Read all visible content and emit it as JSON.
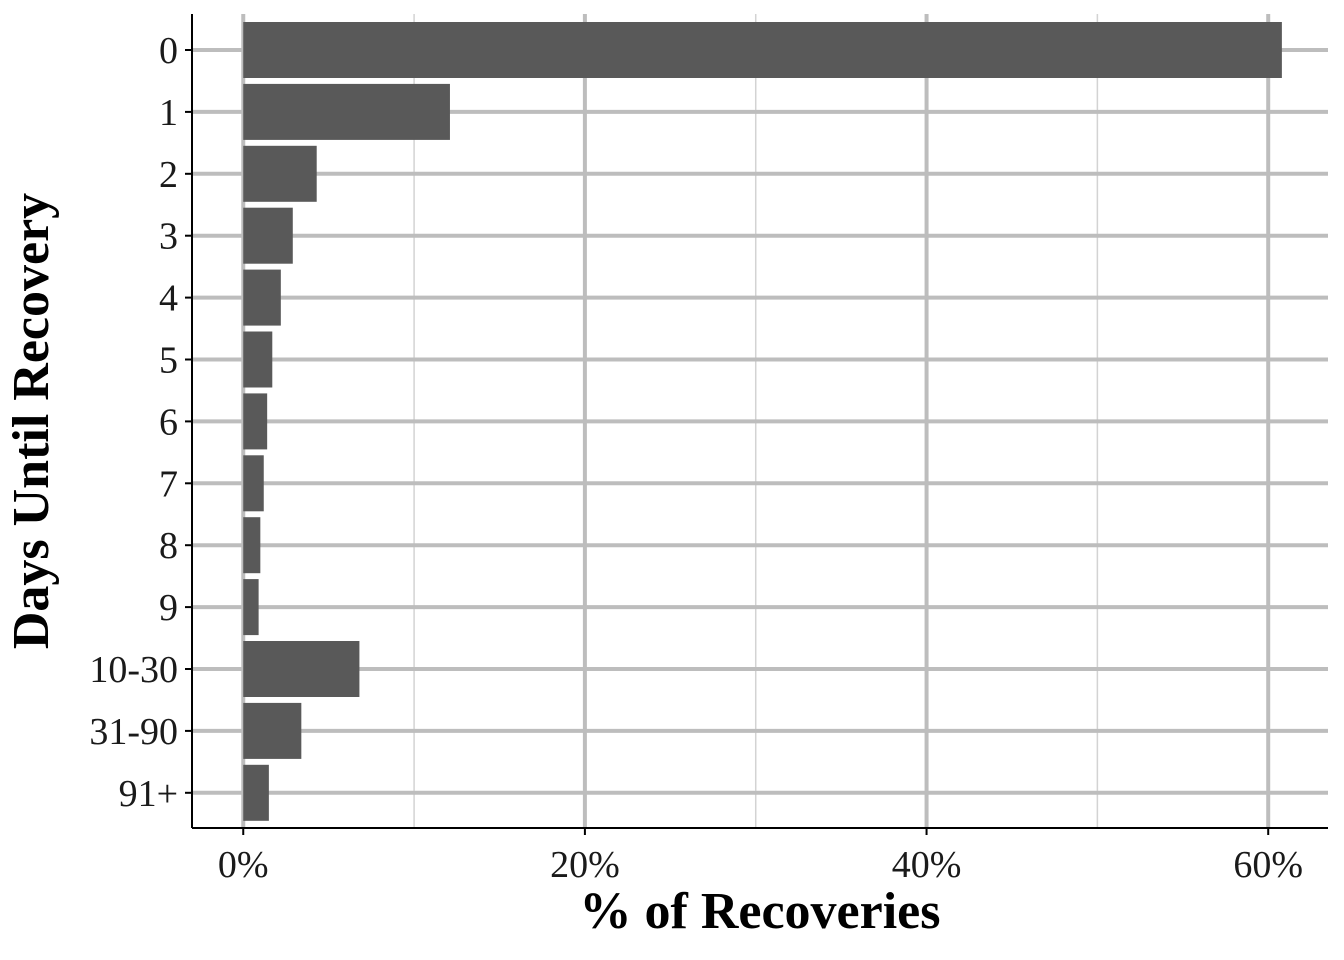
{
  "chart_data": {
    "type": "bar",
    "orientation": "horizontal",
    "categories": [
      "0",
      "1",
      "2",
      "3",
      "4",
      "5",
      "6",
      "7",
      "8",
      "9",
      "10-30",
      "31-90",
      "91+"
    ],
    "values": [
      60.8,
      12.1,
      4.3,
      2.9,
      2.2,
      1.7,
      1.4,
      1.2,
      1.0,
      0.9,
      6.8,
      3.4,
      1.5
    ],
    "xlabel": "% of Recoveries",
    "ylabel": "Days Until Recovery",
    "xlim": [
      -3,
      63.5
    ],
    "x_ticks": [
      0,
      20,
      40,
      60
    ],
    "x_tick_labels": [
      "0%",
      "20%",
      "40%",
      "60%"
    ],
    "grid": true,
    "colors": {
      "bar": "#595959",
      "grid": "#bdbdbd"
    }
  }
}
